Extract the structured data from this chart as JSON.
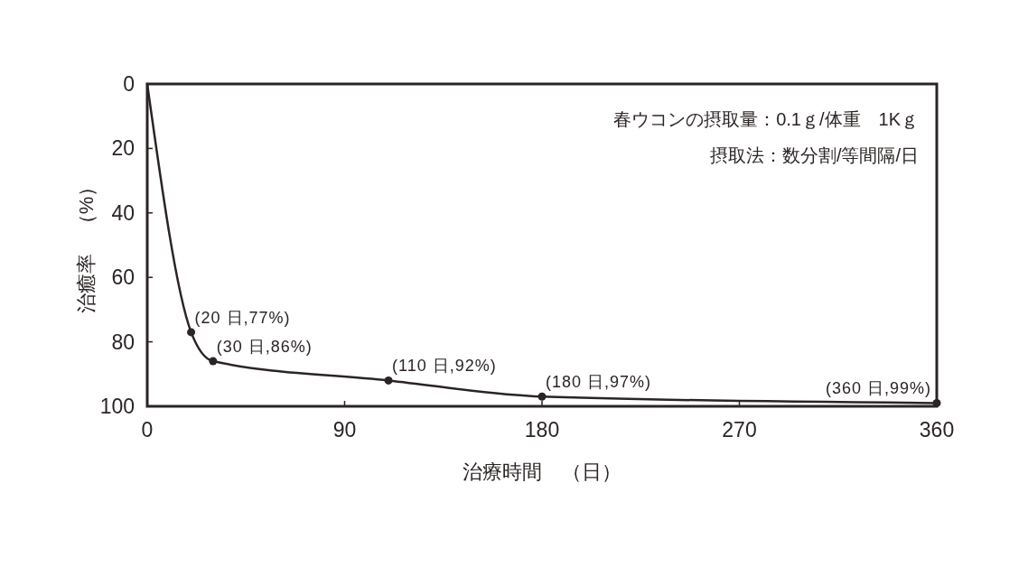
{
  "chart_data": {
    "type": "line",
    "xlabel": "治療時間　（日）",
    "ylabel": "治癒率　（%）",
    "annotations": [
      "春ウコンの摂取量：0.1ｇ/体重　1Kｇ",
      "摂取法：数分割/等間隔/日"
    ],
    "xlim": [
      0,
      360
    ],
    "xticks": [
      0,
      90,
      180,
      270,
      360
    ],
    "ylim": [
      100,
      0
    ],
    "yticks": [
      0,
      20,
      40,
      60,
      80,
      100
    ],
    "series": [
      {
        "type": "line",
        "color": "#2b2424",
        "marker": "none",
        "line_style": "solid",
        "x": [
          0,
          20,
          30,
          110,
          180,
          360
        ],
        "values": [
          0,
          77,
          86,
          92,
          97,
          99
        ]
      },
      {
        "type": "scatter",
        "color": "#2b2424",
        "marker": "circle",
        "x": [
          20,
          30,
          110,
          180,
          360
        ],
        "values": [
          77,
          86,
          92,
          97,
          99
        ],
        "value_labels": [
          "(20 日,77%)",
          "(30 日,86%)",
          "(110 日,92%)",
          "(180 日,97%)",
          "(360 日,99%)"
        ]
      }
    ]
  }
}
